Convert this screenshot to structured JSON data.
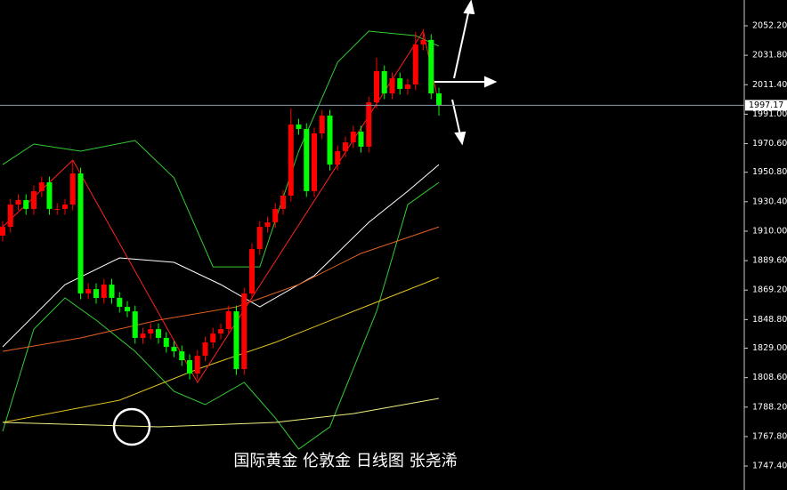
{
  "chart_data": {
    "type": "candlestick",
    "title": "国际黄金 伦敦金 日线图 张尧浠",
    "ylim": [
      1730.8,
      2070.06
    ],
    "yticks": [
      {
        "value": 2052.2,
        "label": "2052.20"
      },
      {
        "value": 2031.8,
        "label": "2031.80"
      },
      {
        "value": 2011.4,
        "label": "2011.40"
      },
      {
        "value": 1991,
        "label": "1991.00"
      },
      {
        "value": 1970.6,
        "label": "1970.60"
      },
      {
        "value": 1950.8,
        "label": "1950.80"
      },
      {
        "value": 1930.4,
        "label": "1930.40"
      },
      {
        "value": 1910,
        "label": "1910.00"
      },
      {
        "value": 1889.6,
        "label": "1889.60"
      },
      {
        "value": 1869.2,
        "label": "1869.20"
      },
      {
        "value": 1848.8,
        "label": "1848.80"
      },
      {
        "value": 1829,
        "label": "1829.00"
      },
      {
        "value": 1808.6,
        "label": "1808.60"
      },
      {
        "value": 1788.2,
        "label": "1788.20"
      },
      {
        "value": 1767.8,
        "label": "1767.80"
      },
      {
        "value": 1747.4,
        "label": "1747.40"
      }
    ],
    "current_price": 1997.17,
    "up_color": "#ff0000",
    "down_color": "#00ff00",
    "open": [
      1906.9,
      1913.0,
      1928.4,
      1931.5,
      1925.4,
      1937.7,
      1943.8,
      1925.4,
      1925.4,
      1928.4,
      1950.0,
      1866.9,
      1869.9,
      1863.8,
      1873.0,
      1863.8,
      1857.6,
      1854.5,
      1836.1,
      1839.1,
      1842.2,
      1836.1,
      1829.9,
      1826.8,
      1820.7,
      1811.4,
      1823.7,
      1833.0,
      1839.1,
      1842.2,
      1854.5,
      1814.5,
      1866.9,
      1897.6,
      1913.0,
      1916.1,
      1925.4,
      1934.6,
      1983.8,
      1980.8,
      1937.7,
      1977.7,
      1990.0,
      1956.1,
      1965.4,
      1971.5,
      1978.9,
      1968.5,
      1999.2,
      2020.8,
      2005.4,
      2015.9,
      2008.5,
      2011.6,
      2039.3,
      2042.4,
      2005.4
    ],
    "high": [
      1917.0,
      1932.4,
      1935.5,
      1935.5,
      1941.7,
      1947.8,
      1947.8,
      1929.4,
      1932.4,
      1959.0,
      1954.0,
      1873.9,
      1873.9,
      1877.0,
      1877.0,
      1867.8,
      1861.6,
      1858.5,
      1843.1,
      1846.2,
      1846.2,
      1840.1,
      1833.9,
      1830.8,
      1824.7,
      1827.7,
      1837.0,
      1843.1,
      1846.2,
      1858.5,
      1858.5,
      1870.9,
      1901.6,
      1917.0,
      1920.1,
      1929.4,
      1938.6,
      1995.0,
      1987.8,
      1984.8,
      1981.7,
      1994.0,
      1994.0,
      1969.4,
      1975.5,
      1982.9,
      1982.9,
      2003.2,
      2030.0,
      2024.8,
      2019.9,
      2019.9,
      2015.6,
      2048.0,
      2050.0,
      2046.4,
      2009.4
    ],
    "low": [
      1902.9,
      1909.0,
      1924.4,
      1921.4,
      1921.4,
      1933.7,
      1921.4,
      1921.4,
      1921.4,
      1924.4,
      1862.9,
      1862.9,
      1859.8,
      1859.8,
      1859.8,
      1853.6,
      1850.5,
      1832.1,
      1832.1,
      1835.1,
      1832.1,
      1825.9,
      1822.8,
      1816.7,
      1807.4,
      1807.4,
      1819.7,
      1829.0,
      1835.1,
      1838.2,
      1810.5,
      1810.5,
      1862.9,
      1893.6,
      1909.0,
      1912.1,
      1921.4,
      1930.6,
      1976.8,
      1933.7,
      1933.7,
      1973.7,
      1952.1,
      1952.1,
      1961.4,
      1967.5,
      1964.5,
      1964.5,
      1995.2,
      2001.4,
      2001.4,
      2004.5,
      2004.5,
      2007.6,
      2035.3,
      2001.4,
      1990.0
    ],
    "close": [
      1913.0,
      1928.4,
      1931.5,
      1925.4,
      1937.7,
      1943.8,
      1925.4,
      1925.4,
      1928.4,
      1950.0,
      1866.9,
      1869.9,
      1863.8,
      1873.0,
      1863.8,
      1857.6,
      1854.5,
      1836.1,
      1839.1,
      1842.2,
      1836.1,
      1829.9,
      1826.8,
      1820.7,
      1811.4,
      1823.7,
      1833.0,
      1839.1,
      1842.2,
      1854.5,
      1814.5,
      1866.9,
      1897.6,
      1913.0,
      1916.1,
      1925.4,
      1934.6,
      1983.8,
      1980.8,
      1937.7,
      1977.7,
      1990.0,
      1956.1,
      1965.4,
      1971.5,
      1978.9,
      1968.5,
      1999.2,
      2020.8,
      2005.4,
      2015.9,
      2008.5,
      2011.6,
      2039.3,
      2042.4,
      2005.4,
      1997.4
    ],
    "lines": [
      {
        "color": "#33cc33",
        "x": [
          0,
          4,
          10,
          17,
          22,
          27,
          33,
          38,
          43,
          47,
          53,
          56
        ],
        "values": [
          1956.1,
          1970.3,
          1965.4,
          1972.8,
          1946.9,
          1885.3,
          1885.3,
          1965.4,
          2027.0,
          2048.5,
          2045.4,
          2038.1
        ]
      },
      {
        "color": "#33cc33",
        "x": [
          0,
          4,
          8,
          12,
          17,
          22,
          26,
          31,
          35,
          38,
          42,
          48,
          52,
          56
        ],
        "values": [
          1771.4,
          1842.2,
          1863.8,
          1848.4,
          1826.8,
          1799.1,
          1789.9,
          1805.3,
          1780.6,
          1759.1,
          1774.5,
          1854.5,
          1928.4,
          1943.8
        ]
      },
      {
        "color": "#ffffff",
        "x": [
          0,
          8,
          15,
          22,
          28,
          33,
          40,
          47,
          52,
          56
        ],
        "values": [
          1829.9,
          1873.0,
          1891.5,
          1888.4,
          1873.0,
          1857.6,
          1879.2,
          1916.1,
          1937.7,
          1956.1
        ]
      },
      {
        "color": "#e06020",
        "x": [
          0,
          10,
          20,
          30,
          38,
          46,
          56
        ],
        "values": [
          1826.8,
          1836.1,
          1848.4,
          1857.6,
          1873.0,
          1894.6,
          1913.0
        ]
      },
      {
        "color": "#e0c020",
        "x": [
          0,
          15,
          25,
          35,
          45,
          56
        ],
        "values": [
          1777.6,
          1793.0,
          1814.5,
          1833.0,
          1854.5,
          1877.9
        ]
      },
      {
        "color": "#f0f080",
        "x": [
          0,
          20,
          35,
          45,
          56
        ],
        "values": [
          1777.6,
          1774.5,
          1777.6,
          1783.7,
          1794.2
        ]
      },
      {
        "color": "#ff2020",
        "x": [
          0,
          9,
          25,
          54,
          56
        ],
        "values": [
          1913.0,
          1959.2,
          1805.3,
          2048.5,
          1997.4
        ]
      }
    ]
  }
}
